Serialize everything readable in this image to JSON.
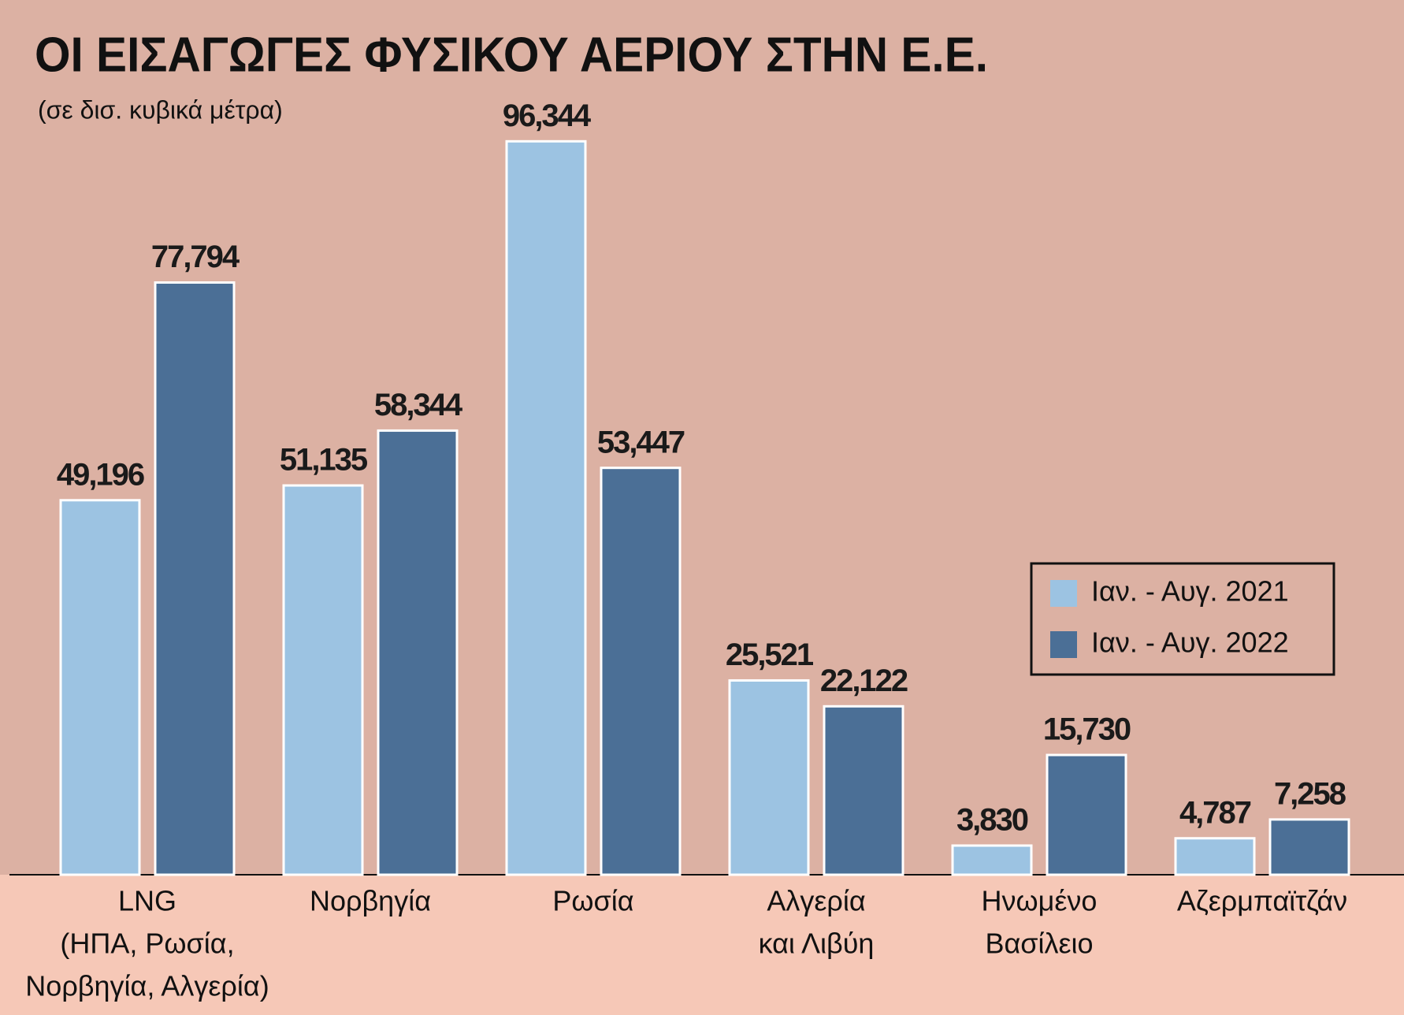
{
  "chart_data": {
    "type": "bar",
    "title": "ΟΙ ΕΙΣΑΓΩΓΕΣ ΦΥΣΙΚΟΥ ΑΕΡΙΟΥ ΣΤΗΝ Ε.Ε.",
    "subtitle": "(σε δισ. κυβικά μέτρα)",
    "categories": [
      [
        "LNG",
        "(ΗΠΑ, Ρωσία,",
        "Νορβηγία, Αλγερία)"
      ],
      [
        "Νορβηγία"
      ],
      [
        "Ρωσία"
      ],
      [
        "Αλγερία",
        "και Λιβύη"
      ],
      [
        "Ηνωμένο",
        "Βασίλειο"
      ],
      [
        "Αζερμπαϊτζάν"
      ]
    ],
    "series": [
      {
        "name": "Ιαν. - Αυγ. 2021",
        "color": "#9cc3e2",
        "values": [
          49.196,
          51.135,
          96.344,
          25.521,
          3.83,
          4.787
        ],
        "value_labels": [
          "49,196",
          "51,135",
          "96,344",
          "25,521",
          "3,830",
          "4,787"
        ]
      },
      {
        "name": "Ιαν. - Αυγ. 2022",
        "color": "#4b6f96",
        "values": [
          77.794,
          58.344,
          53.447,
          22.122,
          15.73,
          7.258
        ],
        "value_labels": [
          "77,794",
          "58,344",
          "53,447",
          "22,122",
          "15,730",
          "7,258"
        ]
      }
    ]
  }
}
